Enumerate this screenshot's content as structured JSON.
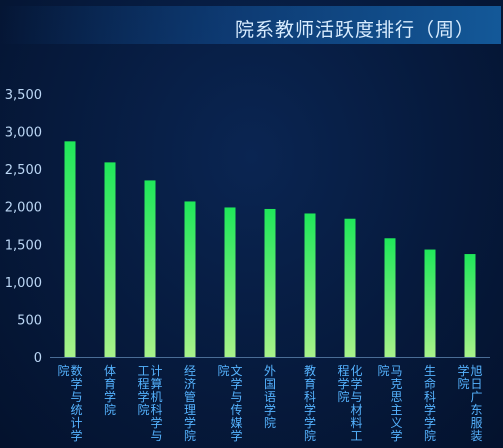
{
  "window": {
    "title": "院系教师活跃度排行（周）"
  },
  "chart_data": {
    "type": "bar",
    "title": "院系教师活跃度排行（周）",
    "xlabel": "",
    "ylabel": "",
    "categories": [
      "数学与统计学院",
      "体育学院",
      "计算机科学与工程学院",
      "经济管理学院",
      "文学与传媒学院",
      "外国语学院",
      "教育科学学院",
      "化学与材料工程学院",
      "马克思主义学院",
      "生命科学学院",
      "旭日广东服装学院"
    ],
    "values": [
      2870,
      2590,
      2350,
      2070,
      1990,
      1970,
      1910,
      1840,
      1580,
      1430,
      1370
    ],
    "ylim": [
      0,
      3500
    ],
    "yticks": [
      0,
      500,
      1000,
      1500,
      2000,
      2500,
      3000,
      3500
    ],
    "ytick_labels": [
      "0",
      "500",
      "1,000",
      "1,500",
      "2,000",
      "2,500",
      "3,000",
      "3,500"
    ],
    "grid": false,
    "legend": "none",
    "colors": {
      "bar_top": "#1fe85a",
      "bar_bottom": "#a8f28a",
      "tick_label": "#bcd7f5",
      "category_label": "#55b3ff",
      "axis": "#4a6d96"
    }
  }
}
